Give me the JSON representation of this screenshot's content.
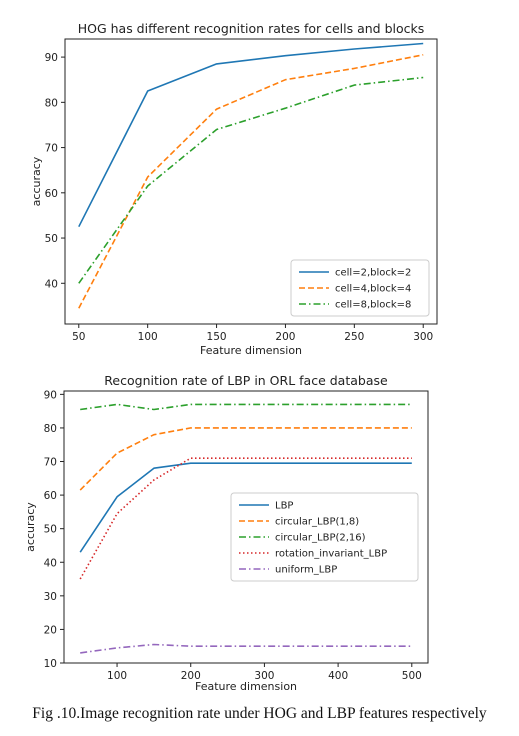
{
  "charts": [
    {
      "title": "HOG has different recognition rates for cells and blocks",
      "xlabel": "Feature dimension",
      "ylabel": "accuracy",
      "xticks": [
        50,
        100,
        150,
        200,
        250,
        300
      ],
      "yticks": [
        40,
        50,
        60,
        70,
        80,
        90
      ],
      "xlim": [
        40,
        310
      ],
      "ylim": [
        31,
        94
      ],
      "legend_position": "lower-right",
      "series": [
        {
          "name": "cell=2,block=2",
          "color": "#1f77b4",
          "style": "solid",
          "x": [
            50,
            100,
            150,
            200,
            250,
            300
          ],
          "y": [
            52.5,
            82.5,
            88.5,
            90.3,
            91.8,
            93.0
          ]
        },
        {
          "name": "cell=4,block=4",
          "color": "#ff7f0e",
          "style": "dashed",
          "x": [
            50,
            100,
            150,
            200,
            250,
            300
          ],
          "y": [
            34.5,
            63.5,
            78.5,
            85.0,
            87.5,
            90.5
          ]
        },
        {
          "name": "cell=8,block=8",
          "color": "#2ca02c",
          "style": "dashdot",
          "x": [
            50,
            100,
            150,
            200,
            250,
            300
          ],
          "y": [
            40.0,
            61.5,
            74.0,
            78.7,
            83.8,
            85.5
          ]
        }
      ]
    },
    {
      "title": "Recognition rate of LBP in ORL face database",
      "xlabel": "Feature dimension",
      "ylabel": "accuracy",
      "xticks": [
        100,
        200,
        300,
        400,
        500
      ],
      "yticks": [
        10,
        20,
        30,
        40,
        50,
        60,
        70,
        80,
        90
      ],
      "xlim": [
        28,
        522
      ],
      "ylim": [
        10,
        91
      ],
      "legend_position": "center-right",
      "series": [
        {
          "name": "LBP",
          "color": "#1f77b4",
          "style": "solid",
          "x": [
            50,
            100,
            150,
            200,
            250,
            300,
            350,
            400,
            450,
            500
          ],
          "y": [
            43.0,
            59.5,
            68.0,
            69.5,
            69.5,
            69.5,
            69.5,
            69.5,
            69.5,
            69.5
          ]
        },
        {
          "name": "circular_LBP(1,8)",
          "color": "#ff7f0e",
          "style": "dashed",
          "x": [
            50,
            100,
            150,
            200,
            250,
            300,
            350,
            400,
            450,
            500
          ],
          "y": [
            61.5,
            72.5,
            78.0,
            80.0,
            80.0,
            80.0,
            80.0,
            80.0,
            80.0,
            80.0
          ]
        },
        {
          "name": "circular_LBP(2,16)",
          "color": "#2ca02c",
          "style": "dashdot",
          "x": [
            50,
            100,
            150,
            200,
            250,
            300,
            350,
            400,
            450,
            500
          ],
          "y": [
            85.5,
            87.0,
            85.5,
            87.0,
            87.0,
            87.0,
            87.0,
            87.0,
            87.0,
            87.0
          ]
        },
        {
          "name": "rotation_invariant_LBP",
          "color": "#d62728",
          "style": "dotted",
          "x": [
            50,
            100,
            150,
            200,
            250,
            300,
            350,
            400,
            450,
            500
          ],
          "y": [
            35.0,
            54.5,
            64.5,
            71.0,
            71.0,
            71.0,
            71.0,
            71.0,
            71.0,
            71.0
          ]
        },
        {
          "name": "uniform_LBP",
          "color": "#9467bd",
          "style": "dashdot",
          "x": [
            50,
            100,
            150,
            200,
            250,
            300,
            350,
            400,
            450,
            500
          ],
          "y": [
            13.0,
            14.5,
            15.5,
            15.0,
            15.0,
            15.0,
            15.0,
            15.0,
            15.0,
            15.0
          ]
        }
      ]
    }
  ],
  "chart_data": [
    {
      "type": "line",
      "title": "HOG has different recognition rates for cells and blocks",
      "xlabel": "Feature dimension",
      "ylabel": "accuracy",
      "x": [
        50,
        100,
        150,
        200,
        250,
        300
      ],
      "xlim": [
        40,
        310
      ],
      "ylim": [
        31,
        94
      ],
      "grid": false,
      "legend": "lower-right",
      "series": [
        {
          "name": "cell=2,block=2",
          "values": [
            52.5,
            82.5,
            88.5,
            90.3,
            91.8,
            93.0
          ]
        },
        {
          "name": "cell=4,block=4",
          "values": [
            34.5,
            63.5,
            78.5,
            85.0,
            87.5,
            90.5
          ]
        },
        {
          "name": "cell=8,block=8",
          "values": [
            40.0,
            61.5,
            74.0,
            78.7,
            83.8,
            85.5
          ]
        }
      ]
    },
    {
      "type": "line",
      "title": "Recognition rate of LBP in ORL face database",
      "xlabel": "Feature dimension",
      "ylabel": "accuracy",
      "x": [
        50,
        100,
        150,
        200,
        250,
        300,
        350,
        400,
        450,
        500
      ],
      "xlim": [
        28,
        522
      ],
      "ylim": [
        10,
        91
      ],
      "grid": false,
      "legend": "center-right",
      "series": [
        {
          "name": "LBP",
          "values": [
            43.0,
            59.5,
            68.0,
            69.5,
            69.5,
            69.5,
            69.5,
            69.5,
            69.5,
            69.5
          ]
        },
        {
          "name": "circular_LBP(1,8)",
          "values": [
            61.5,
            72.5,
            78.0,
            80.0,
            80.0,
            80.0,
            80.0,
            80.0,
            80.0,
            80.0
          ]
        },
        {
          "name": "circular_LBP(2,16)",
          "values": [
            85.5,
            87.0,
            85.5,
            87.0,
            87.0,
            87.0,
            87.0,
            87.0,
            87.0,
            87.0
          ]
        },
        {
          "name": "rotation_invariant_LBP",
          "values": [
            35.0,
            54.5,
            64.5,
            71.0,
            71.0,
            71.0,
            71.0,
            71.0,
            71.0,
            71.0
          ]
        },
        {
          "name": "uniform_LBP",
          "values": [
            13.0,
            14.5,
            15.5,
            15.0,
            15.0,
            15.0,
            15.0,
            15.0,
            15.0,
            15.0
          ]
        }
      ]
    }
  ],
  "caption": "Fig .10.Image recognition rate under HOG and LBP features respectively"
}
